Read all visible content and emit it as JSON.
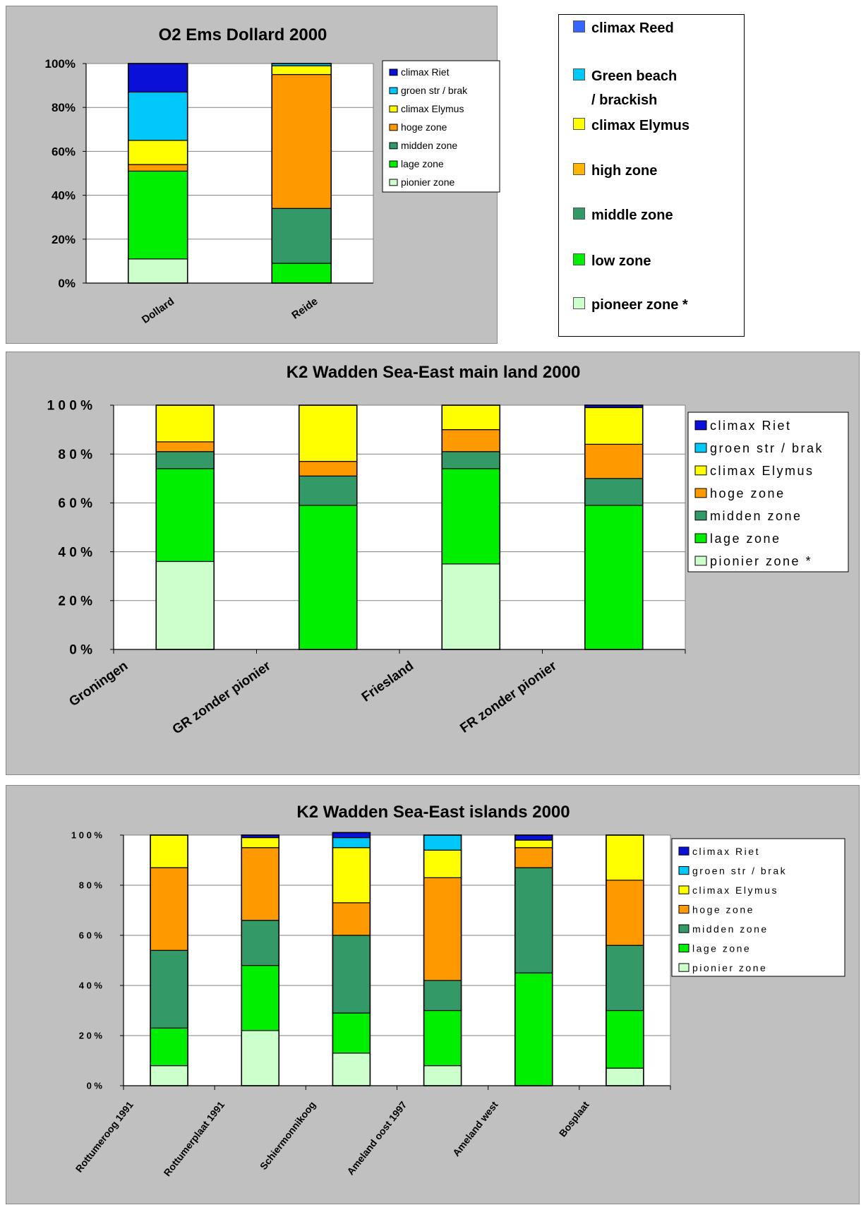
{
  "stack_order": [
    "climax_riet",
    "groen_str",
    "climax_elymus",
    "hoge_zone",
    "midden_zone",
    "lage_zone",
    "pionier_zone"
  ],
  "colors": {
    "climax_riet": "#0a10d8",
    "groen_str": "#00c8f8",
    "climax_elymus": "#ffff00",
    "hoge_zone": "#ff9900",
    "midden_zone": "#339966",
    "lage_zone": "#00ee00",
    "pionier_zone": "#ccffcc"
  },
  "key_colors": {
    "climax_riet": "#3366ff",
    "groen_str": "#00c8f8",
    "climax_elymus": "#ffff00",
    "hoge_zone": "#ffb400",
    "midden_zone": "#339966",
    "lage_zone": "#00ee00",
    "pionier_zone": "#ccffcc"
  },
  "key": [
    {
      "series": "climax_riet",
      "label": "climax Reed"
    },
    {
      "series": "groen_str",
      "label": "Green beach\n/ brackish"
    },
    {
      "series": "climax_elymus",
      "label": "climax Elymus"
    },
    {
      "series": "hoge_zone",
      "label": "high zone"
    },
    {
      "series": "midden_zone",
      "label": "middle zone"
    },
    {
      "series": "lage_zone",
      "label": "low zone"
    },
    {
      "series": "pionier_zone",
      "label": "pioneer zone *"
    }
  ],
  "chart_data": [
    {
      "type": "bar",
      "stacked": true,
      "title": "O2 Ems Dollard 2000",
      "ylim": [
        0,
        100
      ],
      "yticks": [
        "0%",
        "20%",
        "40%",
        "60%",
        "80%",
        "100%"
      ],
      "categories": [
        "Dollard",
        "Reide"
      ],
      "legend": [
        "climax Riet",
        "groen str / brak",
        "climax Elymus",
        "hoge zone",
        "midden zone",
        "lage zone",
        "pionier zone"
      ],
      "legend_position": "right",
      "series": [
        {
          "name": "pionier zone",
          "key": "pionier_zone",
          "values": [
            11,
            0
          ]
        },
        {
          "name": "lage zone",
          "key": "lage_zone",
          "values": [
            40,
            9
          ]
        },
        {
          "name": "midden zone",
          "key": "midden_zone",
          "values": [
            0,
            25
          ]
        },
        {
          "name": "hoge zone",
          "key": "hoge_zone",
          "values": [
            3,
            61
          ]
        },
        {
          "name": "climax Elymus",
          "key": "climax_elymus",
          "values": [
            11,
            4
          ]
        },
        {
          "name": "groen str / brak",
          "key": "groen_str",
          "values": [
            22,
            1
          ]
        },
        {
          "name": "climax Riet",
          "key": "climax_riet",
          "values": [
            13,
            0
          ]
        }
      ]
    },
    {
      "type": "bar",
      "stacked": true,
      "title": "K2 Wadden Sea-East main land 2000",
      "ylim": [
        0,
        100
      ],
      "yticks": [
        "0 %",
        "2 0 %",
        "4 0 %",
        "6 0 %",
        "8 0 %",
        "1 0 0 %"
      ],
      "categories": [
        "Groningen",
        "GR zonder pionier",
        "Friesland",
        "FR zonder pionier"
      ],
      "legend": [
        "climax Riet",
        "groen str / brak",
        "climax Elymus",
        "hoge zone",
        "midden zone",
        "lage zone",
        "pionier zone *"
      ],
      "legend_position": "right",
      "series": [
        {
          "name": "pionier zone *",
          "key": "pionier_zone",
          "values": [
            36,
            0,
            35,
            0
          ]
        },
        {
          "name": "lage zone",
          "key": "lage_zone",
          "values": [
            38,
            59,
            39,
            59
          ]
        },
        {
          "name": "midden zone",
          "key": "midden_zone",
          "values": [
            7,
            12,
            7,
            11
          ]
        },
        {
          "name": "hoge zone",
          "key": "hoge_zone",
          "values": [
            4,
            6,
            9,
            14
          ]
        },
        {
          "name": "climax Elymus",
          "key": "climax_elymus",
          "values": [
            15,
            23,
            10,
            15
          ]
        },
        {
          "name": "groen str / brak",
          "key": "groen_str",
          "values": [
            0,
            0,
            0,
            0
          ]
        },
        {
          "name": "climax Riet",
          "key": "climax_riet",
          "values": [
            0,
            0,
            0,
            1
          ]
        }
      ]
    },
    {
      "type": "bar",
      "stacked": true,
      "title": "K2 Wadden Sea-East islands 2000",
      "ylim": [
        0,
        100
      ],
      "yticks": [
        "0 %",
        "2 0 %",
        "4 0 %",
        "6 0 %",
        "8 0 %",
        "1 0 0 %"
      ],
      "categories": [
        "Rottumeroog 1991",
        "Rottumerplaat 1991",
        "Schiermonnikoog",
        "Ameland oost 1997",
        "Ameland west",
        "Bosplaat"
      ],
      "legend": [
        "climax Riet",
        "groen str / brak",
        "climax Elymus",
        "hoge zone",
        "midden zone",
        "lage zone",
        "pionier zone"
      ],
      "legend_position": "right",
      "series": [
        {
          "name": "pionier zone",
          "key": "pionier_zone",
          "values": [
            8,
            22,
            13,
            8,
            0,
            7
          ]
        },
        {
          "name": "lage zone",
          "key": "lage_zone",
          "values": [
            15,
            26,
            16,
            22,
            45,
            23
          ]
        },
        {
          "name": "midden zone",
          "key": "midden_zone",
          "values": [
            31,
            18,
            31,
            12,
            42,
            26
          ]
        },
        {
          "name": "hoge zone",
          "key": "hoge_zone",
          "values": [
            33,
            29,
            13,
            41,
            8,
            26
          ]
        },
        {
          "name": "climax Elymus",
          "key": "climax_elymus",
          "values": [
            13,
            4,
            22,
            11,
            3,
            18
          ]
        },
        {
          "name": "groen str / brak",
          "key": "groen_str",
          "values": [
            0,
            0,
            4,
            6,
            0,
            0
          ]
        },
        {
          "name": "climax Riet",
          "key": "climax_riet",
          "values": [
            0,
            1,
            2,
            0,
            2,
            0
          ]
        }
      ]
    }
  ]
}
